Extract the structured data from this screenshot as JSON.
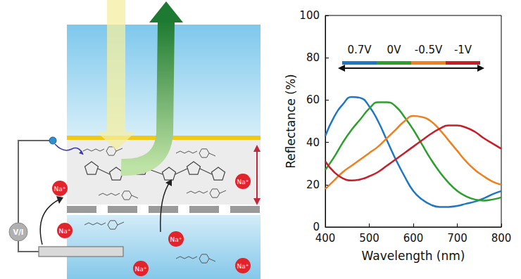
{
  "chart_data": {
    "type": "line",
    "x_label": "Wavelength (nm)",
    "y_label": "Reflectance (%)",
    "x": [
      400,
      420,
      440,
      460,
      480,
      500,
      520,
      540,
      560,
      580,
      600,
      620,
      640,
      660,
      680,
      700,
      720,
      740,
      760,
      780,
      800
    ],
    "xlim": [
      400,
      800
    ],
    "xticks": [
      400,
      500,
      600,
      700,
      800
    ],
    "ylim": [
      0,
      100
    ],
    "yticks": [
      0,
      20,
      40,
      60,
      80,
      100
    ],
    "grid": false,
    "legend": "top",
    "series": [
      {
        "name": "0.7V",
        "color": "#1f77c4",
        "values": [
          43,
          52,
          58,
          61.5,
          61,
          57,
          50,
          41,
          32,
          24,
          17,
          13,
          10.5,
          9.5,
          9.5,
          10,
          11,
          12,
          13.5,
          15.5,
          17
        ]
      },
      {
        "name": "0V",
        "color": "#2ca02c",
        "values": [
          27,
          33,
          40,
          46,
          51,
          56,
          59,
          59,
          57,
          52,
          46,
          39,
          32,
          26,
          21,
          17,
          14.5,
          13,
          12.5,
          13,
          14
        ]
      },
      {
        "name": "-0.5V",
        "color": "#f07f1e",
        "values": [
          18,
          22,
          26,
          29,
          32,
          35,
          38,
          42,
          46,
          50,
          52.5,
          52,
          50,
          46,
          41,
          36,
          31,
          27,
          24,
          21.5,
          20
        ]
      },
      {
        "name": "-1V",
        "color": "#c81e28",
        "values": [
          31,
          26,
          23,
          22,
          22.5,
          24,
          26,
          29,
          32,
          35,
          38,
          41,
          44,
          46.5,
          48,
          48,
          47,
          45,
          42,
          39.5,
          37
        ]
      }
    ]
  },
  "schematic": {
    "source_label": "V/I",
    "ions": [
      "Na⁺",
      "Na⁺",
      "Na⁺",
      "Na⁺",
      "Na⁺",
      "Na⁺"
    ]
  }
}
